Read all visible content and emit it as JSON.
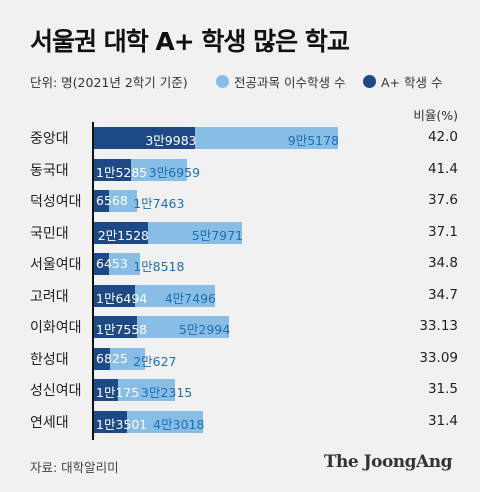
{
  "title": "서울권 대학 A+ 학생 많은 학교",
  "legend": {
    "unit": "단위: 명(2021년 2학기 기준)",
    "items": [
      {
        "label": "전공과목 이수학생 수",
        "color": "#88bde6"
      },
      {
        "label": "A+ 학생 수",
        "color": "#1d4a86"
      }
    ]
  },
  "ratio_header": "비율(%)",
  "source": "자료: 대학알리미",
  "brand": "The JoongAng",
  "chart_data": {
    "type": "bar",
    "title": "서울권 대학 A+ 학생 많은 학교",
    "categories": [
      "중앙대",
      "동국대",
      "덕성여대",
      "국민대",
      "서울여대",
      "고려대",
      "이화여대",
      "한성대",
      "성신여대",
      "연세대"
    ],
    "series": [
      {
        "name": "전공과목 이수학생 수",
        "values": [
          95178,
          36959,
          17463,
          57971,
          18518,
          47496,
          52994,
          20627,
          32315,
          43018
        ],
        "labels": [
          "9만5178",
          "3만6959",
          "1만7463",
          "5만7971",
          "1만8518",
          "4만7496",
          "5만2994",
          "2만627",
          "3만2315",
          "4만3018"
        ]
      },
      {
        "name": "A+ 학생 수",
        "values": [
          39983,
          15285,
          6568,
          21528,
          6453,
          16494,
          17558,
          6825,
          10175,
          13501
        ],
        "labels": [
          "3만9983",
          "1만5285",
          "6568",
          "2만1528",
          "6453",
          "1만6494",
          "1만7558",
          "6825",
          "1만175",
          "1만3501"
        ]
      }
    ],
    "ratio": [
      "42.0",
      "41.4",
      "37.6",
      "37.1",
      "34.8",
      "34.7",
      "33.13",
      "33.09",
      "31.5",
      "31.4"
    ],
    "xlim": [
      0,
      100000
    ],
    "grid": false
  }
}
